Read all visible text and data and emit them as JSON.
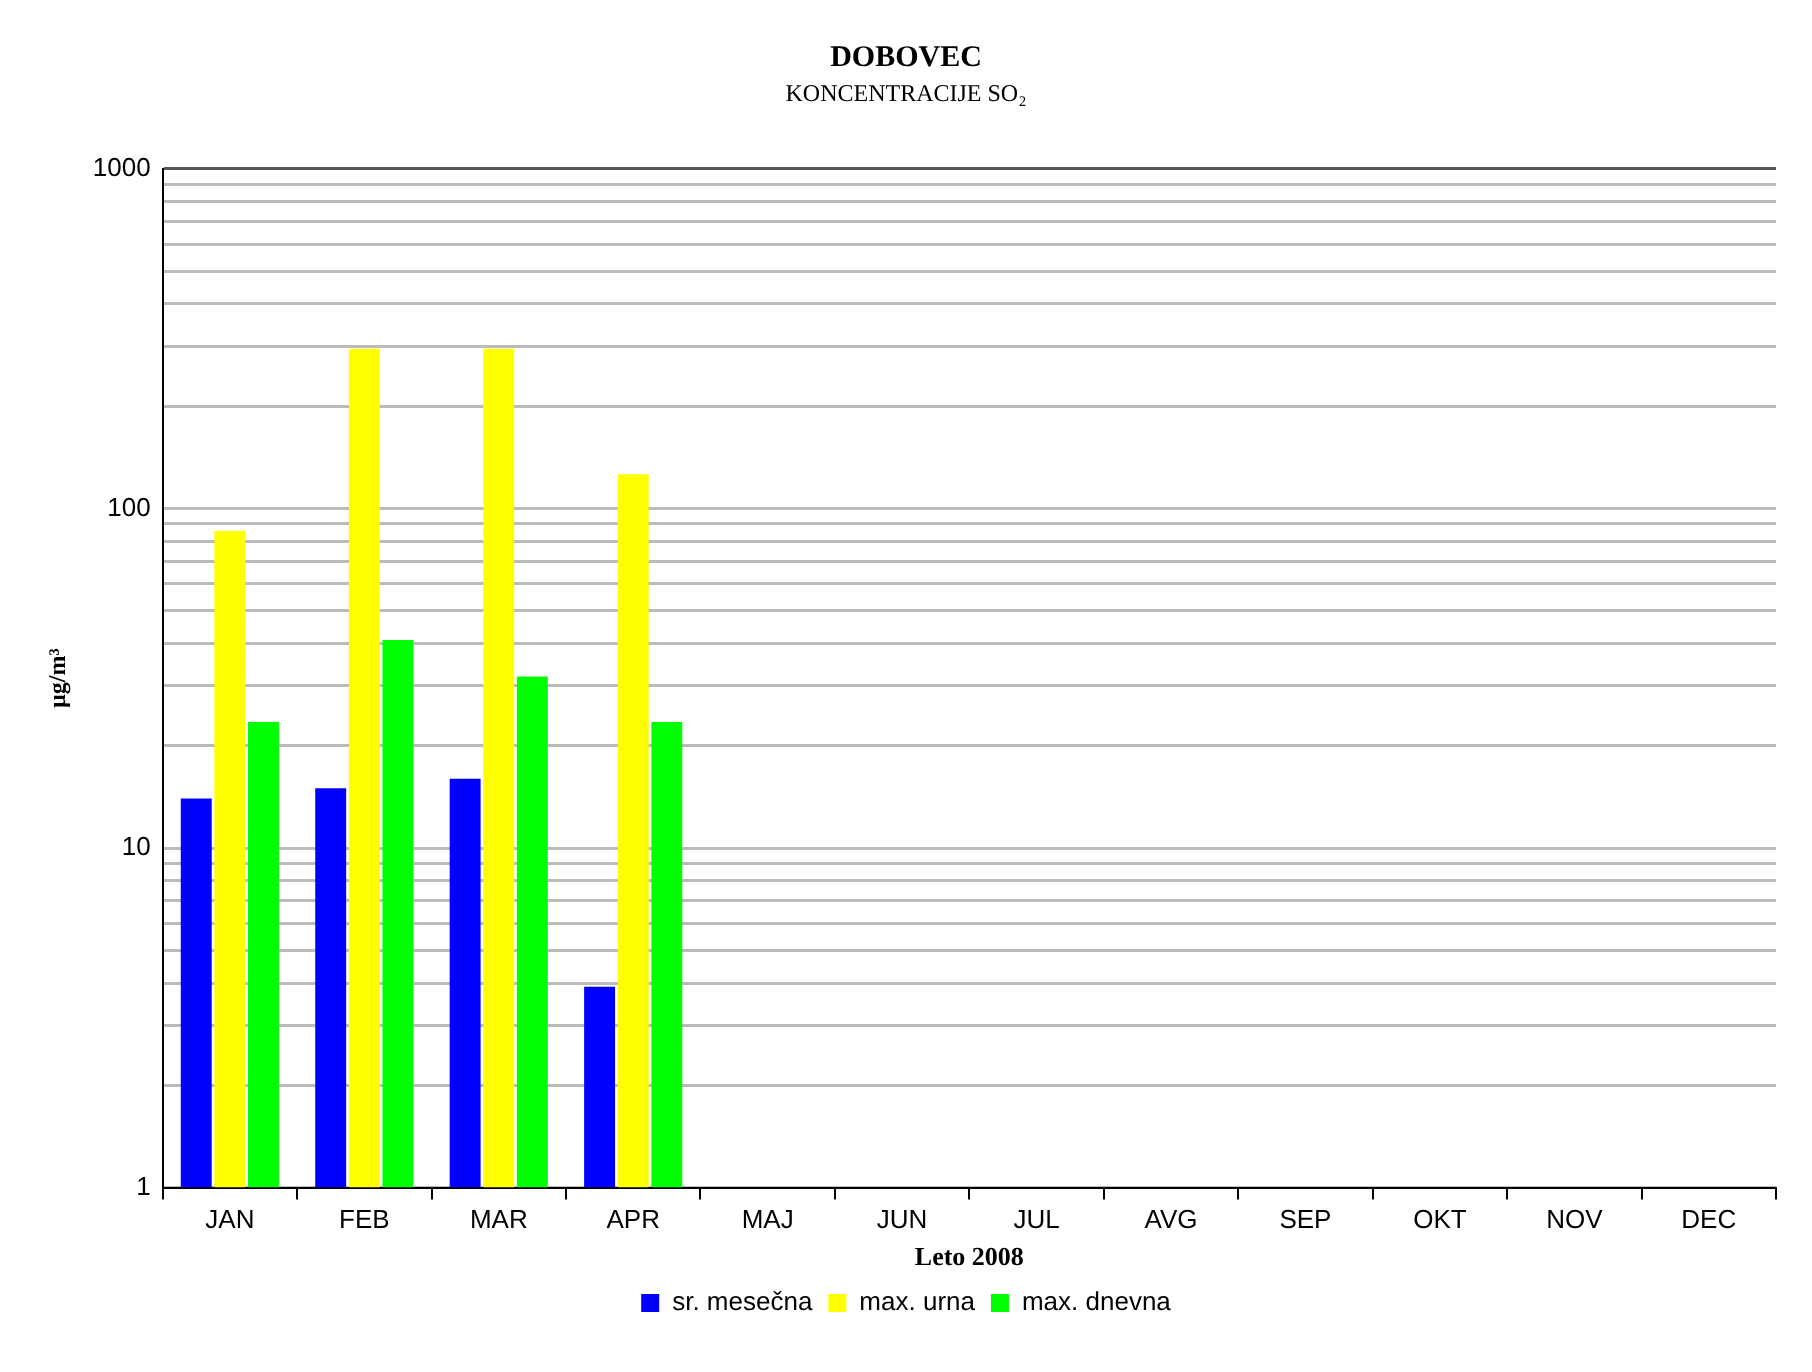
{
  "chart_data": {
    "type": "bar",
    "title": "DOBOVEC",
    "subtitle": "KONCENTRACIJE SO₂",
    "xlabel": "Leto 2008",
    "ylabel": "µg/m³",
    "categories": [
      "JAN",
      "FEB",
      "MAR",
      "APR",
      "MAJ",
      "JUN",
      "JUL",
      "AVG",
      "SEP",
      "OKT",
      "NOV",
      "DEC"
    ],
    "series": [
      {
        "name": "sr. mesečna",
        "color": "#0000ff",
        "values": [
          14,
          15,
          16,
          3.9,
          null,
          null,
          null,
          null,
          null,
          null,
          null,
          null
        ]
      },
      {
        "name": "max. urna",
        "color": "#ffff00",
        "values": [
          86,
          295,
          295,
          126,
          null,
          null,
          null,
          null,
          null,
          null,
          null,
          null
        ]
      },
      {
        "name": "max. dnevna",
        "color": "#00ff00",
        "values": [
          23.5,
          41,
          32,
          23.5,
          null,
          null,
          null,
          null,
          null,
          null,
          null,
          null
        ]
      }
    ],
    "log": "y",
    "ylim": [
      1,
      1000
    ],
    "yticks": [
      1,
      {
        "value": 2,
        "label": null
      },
      {
        "value": 3,
        "label": null
      },
      {
        "value": 4,
        "label": null
      },
      {
        "value": 5,
        "label": null
      },
      {
        "value": 6,
        "label": null
      },
      {
        "value": 7,
        "label": null
      },
      {
        "value": 8,
        "label": null
      },
      {
        "value": 9,
        "label": null
      },
      10,
      {
        "value": 20,
        "label": null
      },
      {
        "value": 30,
        "label": null
      },
      {
        "value": 40,
        "label": null
      },
      {
        "value": 50,
        "label": null
      },
      {
        "value": 60,
        "label": null
      },
      {
        "value": 70,
        "label": null
      },
      {
        "value": 80,
        "label": null
      },
      {
        "value": 90,
        "label": null
      },
      100,
      {
        "value": 200,
        "label": null
      },
      {
        "value": 300,
        "label": null
      },
      {
        "value": 400,
        "label": null
      },
      {
        "value": 500,
        "label": null
      },
      {
        "value": 600,
        "label": null
      },
      {
        "value": 700,
        "label": null
      },
      {
        "value": 800,
        "label": null
      },
      {
        "value": 900,
        "label": null
      },
      1000
    ],
    "grid": "y",
    "legend": "bottom"
  }
}
